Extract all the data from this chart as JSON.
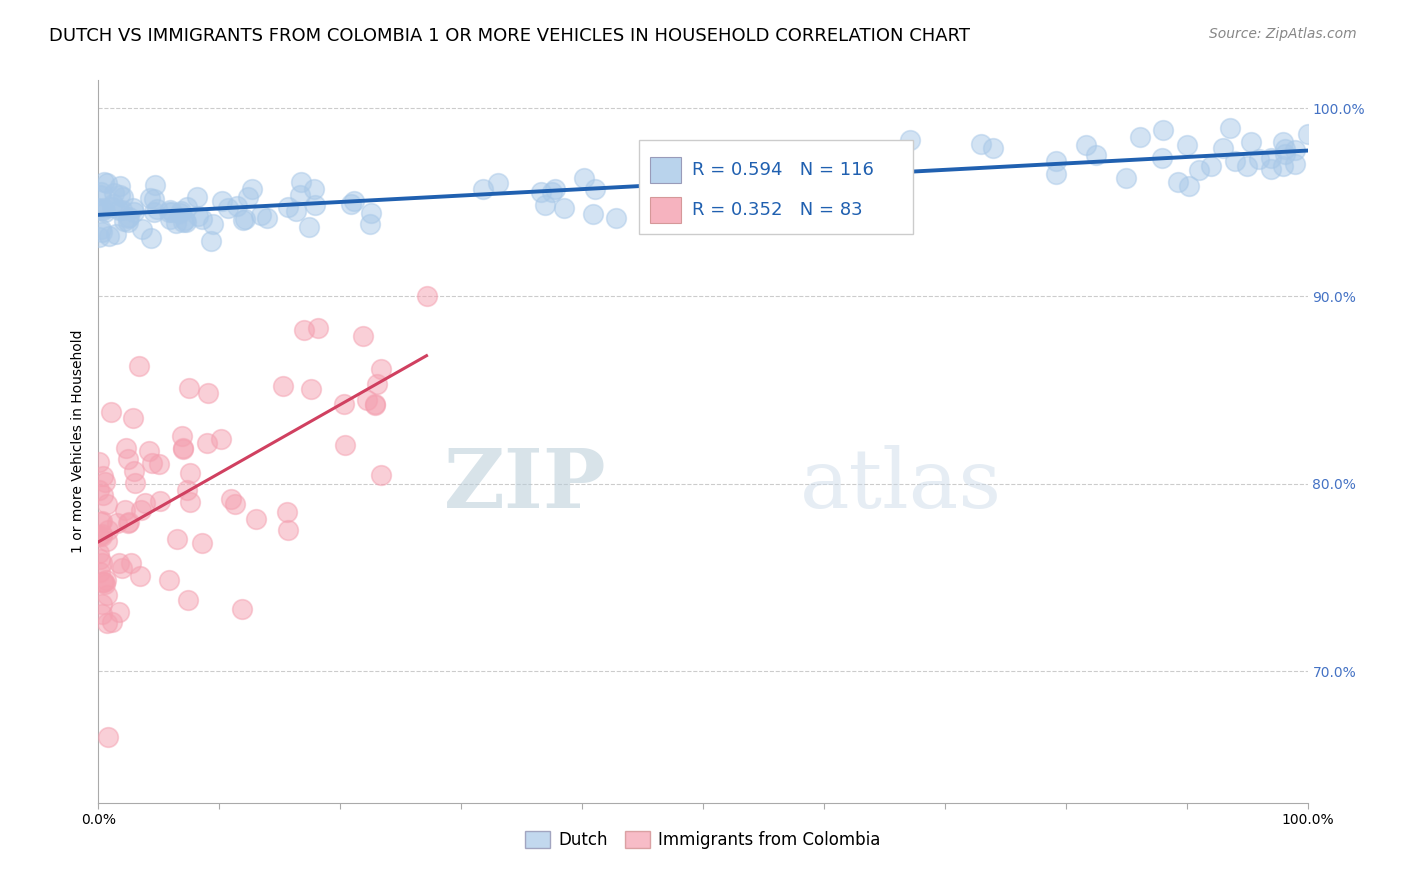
{
  "title": "DUTCH VS IMMIGRANTS FROM COLOMBIA 1 OR MORE VEHICLES IN HOUSEHOLD CORRELATION CHART",
  "source": "Source: ZipAtlas.com",
  "ylabel": "1 or more Vehicles in Household",
  "legend_dutch": "Dutch",
  "legend_colombia": "Immigrants from Colombia",
  "R_dutch": 0.594,
  "N_dutch": 116,
  "R_colombia": 0.352,
  "N_colombia": 83,
  "dutch_color": "#a8c8e8",
  "colombia_color": "#f4a0b0",
  "dutch_line_color": "#2060b0",
  "colombia_line_color": "#d04060",
  "watermark_zip": "ZIP",
  "watermark_atlas": "atlas",
  "xlim": [
    0,
    100
  ],
  "ylim": [
    63,
    101.5
  ],
  "y_ticks": [
    70,
    80,
    90,
    100
  ],
  "y_tick_labels": [
    "70.0%",
    "80.0%",
    "90.0%",
    "100.0%"
  ],
  "title_fontsize": 13,
  "axis_fontsize": 10,
  "tick_fontsize": 10,
  "legend_fontsize": 12,
  "source_fontsize": 10
}
